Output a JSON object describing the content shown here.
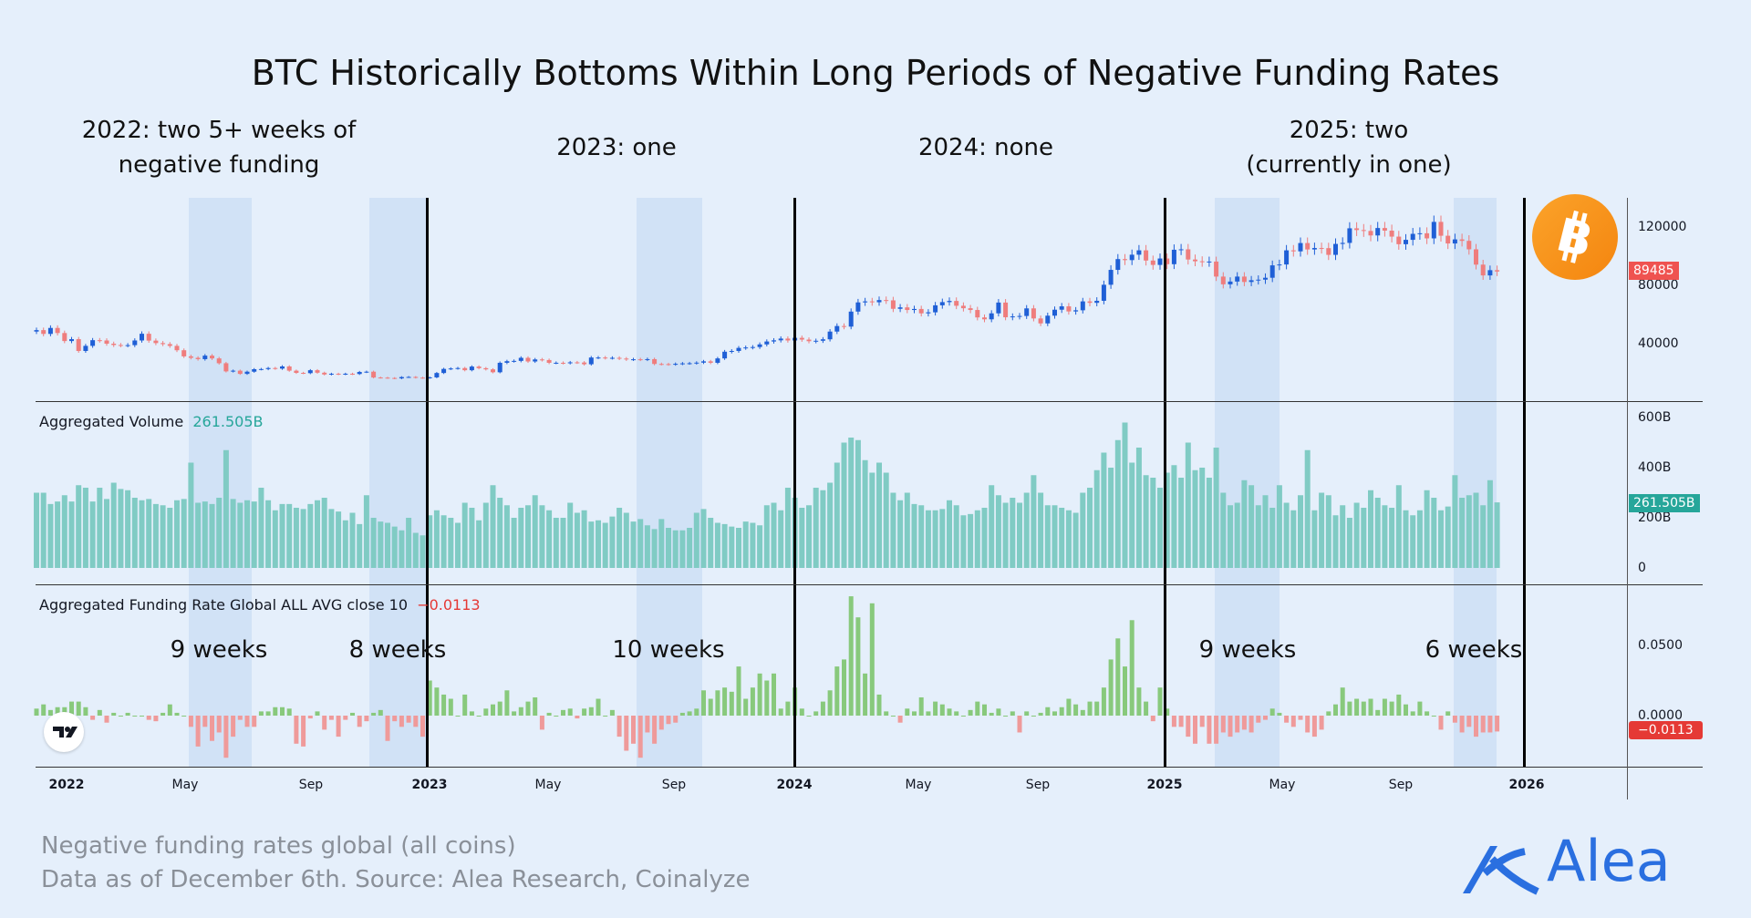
{
  "title": "BTC Historically Bottoms Within Long Periods of Negative Funding Rates",
  "annotations": {
    "y2022": [
      "2022: two 5+ weeks of",
      "negative funding"
    ],
    "y2023": "2023: one",
    "y2024": "2024: none",
    "y2025": [
      "2025: two",
      "(currently in one)"
    ]
  },
  "week_labels": [
    "9 weeks",
    "8 weeks",
    "10 weeks",
    "9 weeks",
    "6 weeks"
  ],
  "footer": {
    "line1": "Negative funding rates global (all coins)",
    "line2": "Data as of December 6th. Source: Alea Research, Coinalyze"
  },
  "brand": {
    "name": "Alea",
    "color": "#2a6fe0"
  },
  "icons": {
    "btc": "bitcoin-logo",
    "tradingview": "tradingview-logo",
    "brand": "alea-logo"
  },
  "colors": {
    "up": "#1f5fd6",
    "down": "#ef7d7d",
    "volume": "#80cbc4",
    "funding_pos": "#88c97c",
    "funding_neg": "#ef9a9a",
    "last_price": "#ef5350",
    "last_volume": "#26a69a",
    "last_funding": "#e53935",
    "shading": "#c6dbf4"
  },
  "chart_data": [
    {
      "type": "candlestick",
      "pane": "price",
      "interval": "weekly",
      "x_start": "2021-12-06",
      "y_ticks": [
        "120000",
        "80000",
        "40000"
      ],
      "ylim": [
        0,
        140000
      ],
      "last_value_label": "89485",
      "close": [
        49300,
        46700,
        50800,
        47300,
        41800,
        43100,
        35000,
        38500,
        42400,
        42200,
        40000,
        39100,
        38900,
        39000,
        42200,
        46800,
        42100,
        40400,
        39700,
        38500,
        35500,
        31300,
        30300,
        29400,
        31800,
        29900,
        26600,
        21000,
        21500,
        19300,
        20800,
        22500,
        22600,
        23300,
        22900,
        24400,
        21500,
        20000,
        19800,
        21800,
        20100,
        18900,
        19400,
        19100,
        19400,
        19200,
        20600,
        20800,
        16800,
        16700,
        16500,
        16200,
        17100,
        17200,
        16700,
        16500,
        16900,
        19900,
        22700,
        23000,
        23300,
        21800,
        24300,
        23200,
        22400,
        20400,
        26900,
        28000,
        28200,
        30300,
        27800,
        29200,
        28800,
        26900,
        26900,
        26700,
        27200,
        27100,
        25900,
        30500,
        30500,
        30200,
        30300,
        29800,
        29200,
        29300,
        29100,
        29400,
        26100,
        26000,
        25800,
        26200,
        26500,
        26600,
        27000,
        27900,
        26900,
        29900,
        34500,
        35000,
        37100,
        37400,
        37700,
        39500,
        41500,
        42300,
        43500,
        42200,
        44000,
        42800,
        41700,
        42000,
        43000,
        48300,
        52100,
        51700,
        62000,
        68300,
        69000,
        68400,
        69900,
        69700,
        63900,
        64900,
        63100,
        63800,
        60800,
        61500,
        66300,
        68500,
        69300,
        66000,
        64300,
        63100,
        58000,
        56700,
        60800,
        68200,
        58100,
        58700,
        59000,
        64200,
        57300,
        53900,
        59200,
        63300,
        65600,
        62100,
        62900,
        69000,
        68000,
        69400,
        80400,
        90600,
        98000,
        97300,
        101000,
        104000,
        97000,
        94000,
        98400,
        94500,
        104400,
        104700,
        97700,
        96500,
        96100,
        96300,
        86000,
        80700,
        82600,
        86000,
        82300,
        83500,
        83900,
        85200,
        93700,
        94300,
        104000,
        103300,
        109000,
        104600,
        105600,
        105500,
        100900,
        108400,
        109100,
        119100,
        117900,
        117300,
        114200,
        119300,
        117500,
        113400,
        108200,
        111200,
        115300,
        115700,
        112200,
        123500,
        114000,
        108700,
        111500,
        110500,
        104700,
        94200,
        86800,
        90400,
        89485
      ]
    },
    {
      "type": "bar",
      "pane": "volume",
      "legend": "Aggregated Volume",
      "legend_value": "261.505B",
      "unit": "B",
      "y_ticks": [
        "600B",
        "400B",
        "200B",
        "0"
      ],
      "ylim": [
        0,
        650
      ],
      "last_value_label": "261.505B",
      "values": [
        300,
        300,
        255,
        265,
        290,
        265,
        330,
        320,
        265,
        320,
        275,
        340,
        315,
        310,
        280,
        270,
        275,
        255,
        250,
        240,
        270,
        275,
        420,
        260,
        265,
        255,
        280,
        470,
        275,
        260,
        270,
        265,
        320,
        270,
        230,
        255,
        255,
        240,
        235,
        255,
        270,
        280,
        235,
        225,
        190,
        220,
        175,
        290,
        200,
        185,
        180,
        165,
        150,
        200,
        140,
        130,
        210,
        230,
        210,
        200,
        180,
        260,
        240,
        190,
        260,
        330,
        280,
        250,
        200,
        240,
        250,
        290,
        250,
        230,
        200,
        200,
        260,
        220,
        230,
        185,
        190,
        180,
        205,
        240,
        220,
        185,
        195,
        170,
        155,
        195,
        160,
        150,
        150,
        160,
        220,
        235,
        200,
        180,
        175,
        165,
        160,
        185,
        180,
        170,
        250,
        260,
        230,
        320,
        280,
        240,
        250,
        320,
        310,
        340,
        420,
        500,
        520,
        510,
        430,
        380,
        420,
        380,
        300,
        270,
        300,
        255,
        250,
        230,
        230,
        235,
        270,
        250,
        210,
        215,
        230,
        240,
        330,
        290,
        260,
        280,
        260,
        300,
        370,
        300,
        250,
        250,
        240,
        230,
        220,
        300,
        320,
        390,
        460,
        400,
        510,
        580,
        420,
        480,
        370,
        360,
        320,
        380,
        410,
        360,
        500,
        390,
        400,
        360,
        480,
        300,
        250,
        260,
        350,
        330,
        250,
        290,
        240,
        330,
        260,
        230,
        290,
        470,
        230,
        300,
        290,
        210,
        250,
        200,
        260,
        240,
        310,
        280,
        250,
        240,
        330,
        230,
        210,
        230,
        310,
        280,
        230,
        245,
        370,
        280,
        290,
        300,
        250,
        350,
        261.505
      ]
    },
    {
      "type": "bar",
      "pane": "funding",
      "legend": "Aggregated Funding Rate Global ALL AVG close 10",
      "legend_value": "−0.0113",
      "y_ticks": [
        "0.0500",
        "0.0000"
      ],
      "ylim": [
        -0.04,
        0.095
      ],
      "last_value_label": "−0.0113",
      "values": [
        0.005,
        0.008,
        0.004,
        0.006,
        0.006,
        0.01,
        0.01,
        0.006,
        -0.003,
        0.004,
        -0.005,
        0.002,
        0.0,
        0.002,
        0.0,
        0.0,
        -0.003,
        -0.004,
        0.002,
        0.008,
        0.002,
        0.0,
        -0.008,
        -0.022,
        -0.008,
        -0.018,
        -0.012,
        -0.03,
        -0.015,
        -0.003,
        -0.008,
        -0.008,
        0.003,
        0.003,
        0.006,
        0.006,
        0.005,
        -0.02,
        -0.022,
        -0.002,
        0.003,
        -0.01,
        -0.003,
        -0.015,
        -0.003,
        0.002,
        -0.008,
        -0.004,
        0.002,
        0.004,
        -0.018,
        -0.004,
        -0.008,
        -0.005,
        -0.008,
        -0.015,
        0.025,
        0.02,
        0.015,
        0.012,
        0.0,
        0.015,
        0.003,
        0.0,
        0.005,
        0.008,
        0.01,
        0.018,
        0.003,
        0.006,
        0.01,
        0.013,
        -0.01,
        0.002,
        0.0,
        0.004,
        0.005,
        -0.002,
        0.005,
        0.006,
        0.012,
        0.0,
        0.004,
        -0.015,
        -0.025,
        -0.02,
        -0.03,
        -0.012,
        -0.02,
        -0.01,
        -0.006,
        -0.005,
        0.002,
        0.003,
        0.005,
        0.018,
        0.012,
        0.018,
        0.02,
        0.017,
        0.035,
        0.012,
        0.02,
        0.03,
        0.025,
        0.03,
        0.005,
        0.01,
        0.02,
        0.005,
        0.0,
        0.003,
        0.01,
        0.018,
        0.035,
        0.04,
        0.085,
        0.07,
        0.03,
        0.08,
        0.015,
        0.003,
        0.0,
        -0.005,
        0.005,
        0.003,
        0.013,
        0.003,
        0.01,
        0.008,
        0.005,
        0.003,
        0.0,
        0.004,
        0.01,
        0.008,
        0.002,
        0.005,
        0.0,
        0.003,
        -0.012,
        0.003,
        0.0,
        0.002,
        0.006,
        0.003,
        0.006,
        0.012,
        0.008,
        0.004,
        0.01,
        0.01,
        0.02,
        0.04,
        0.055,
        0.035,
        0.068,
        0.02,
        0.01,
        -0.004,
        0.02,
        0.005,
        -0.008,
        -0.008,
        -0.015,
        -0.02,
        -0.008,
        -0.02,
        -0.02,
        -0.012,
        -0.015,
        -0.012,
        -0.01,
        -0.012,
        -0.005,
        -0.003,
        0.005,
        0.002,
        -0.005,
        -0.008,
        -0.003,
        -0.012,
        -0.015,
        -0.01,
        0.003,
        0.008,
        0.02,
        0.01,
        0.012,
        0.01,
        0.012,
        0.004,
        0.012,
        0.01,
        0.015,
        0.008,
        0.003,
        0.01,
        0.003,
        0.0,
        -0.01,
        0.003,
        -0.005,
        -0.012,
        -0.008,
        -0.015,
        -0.012,
        -0.012,
        -0.0113
      ]
    }
  ],
  "x_axis": {
    "ticks": [
      "2022",
      "May",
      "Sep",
      "2023",
      "May",
      "Sep",
      "2024",
      "May",
      "Sep",
      "2025",
      "May",
      "Sep",
      "2026"
    ]
  }
}
